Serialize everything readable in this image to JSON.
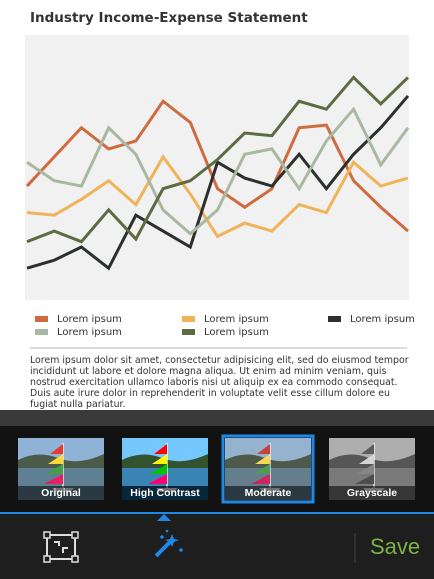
{
  "chart": {
    "type": "line",
    "title": "Industry Income-Expense Statement",
    "ylim": [
      0,
      100
    ],
    "series": [
      {
        "name": "Lorem ipsum",
        "color": "#cf6b3f",
        "values": [
          43,
          54,
          65,
          57,
          60,
          75,
          67,
          42,
          35,
          42,
          65,
          66,
          45,
          35,
          26
        ]
      },
      {
        "name": "Lorem ipsum",
        "color": "#f0b35a",
        "values": [
          33,
          32,
          38,
          45,
          36,
          54,
          40,
          24,
          29,
          26,
          36,
          33,
          52,
          43,
          46
        ]
      },
      {
        "name": "Lorem ipsum",
        "color": "#2b302d",
        "values": [
          12,
          15,
          20,
          12,
          32,
          26,
          20,
          52,
          46,
          43,
          55,
          42,
          55,
          65,
          77
        ]
      },
      {
        "name": "Lorem ipsum",
        "color": "#a9b8a0",
        "values": [
          52,
          45,
          43,
          65,
          55,
          34,
          25,
          34,
          55,
          57,
          42,
          60,
          72,
          51,
          65
        ]
      },
      {
        "name": "Lorem ipsum",
        "color": "#5c6b42",
        "values": [
          22,
          26,
          22,
          34,
          23,
          42,
          45,
          53,
          63,
          62,
          75,
          72,
          84,
          74,
          84
        ]
      }
    ]
  },
  "paragraph": "Lorem ipsum dolor sit amet, consectetur adipisicing elit, sed do eiusmod tempor incididunt ut labore et dolore magna aliqua. Ut enim ad minim veniam, quis nostrud exercitation ullamco laboris nisi ut aliquip ex ea commodo consequat. Duis aute irure dolor in reprehenderit in voluptate velit esse cillum dolore eu fugiat nulla pariatur.",
  "filters": [
    "Original",
    "High Contrast",
    "Moderate",
    "Grayscale"
  ],
  "save": "Save"
}
